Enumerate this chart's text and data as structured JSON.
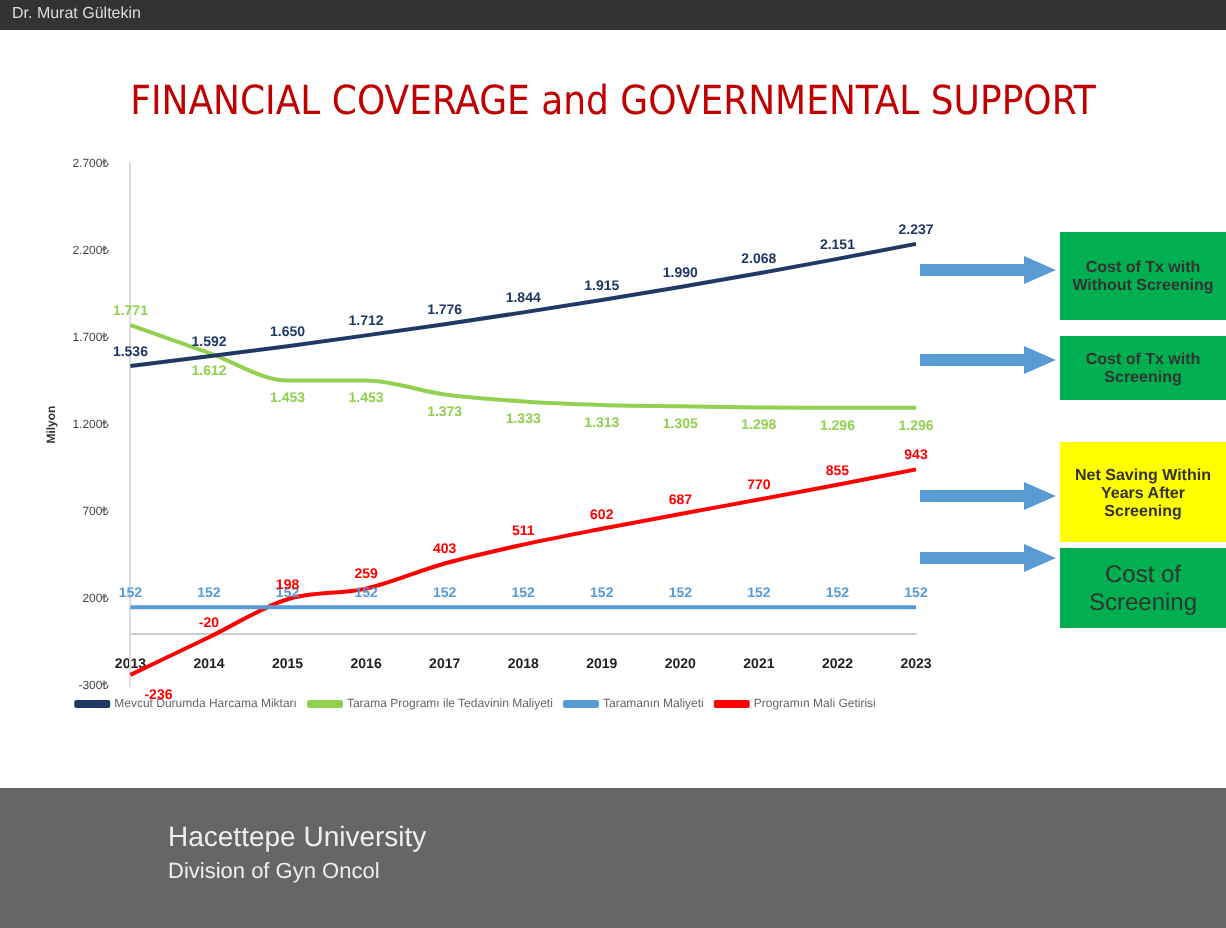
{
  "chart_data": {
    "type": "line",
    "title": "FINANCIAL COVERAGE and GOVERNMENTAL SUPPORT",
    "ylabel": "Milyon",
    "categories": [
      "2013",
      "2014",
      "2015",
      "2016",
      "2017",
      "2018",
      "2019",
      "2020",
      "2021",
      "2022",
      "2023"
    ],
    "ylim": [
      -300,
      2700
    ],
    "yticks": [
      {
        "value": -300,
        "label": "-300₺"
      },
      {
        "value": 200,
        "label": "200₺"
      },
      {
        "value": 700,
        "label": "700₺"
      },
      {
        "value": 1200,
        "label": "1.200₺"
      },
      {
        "value": 1700,
        "label": "1.700₺"
      },
      {
        "value": 2200,
        "label": "2.200₺"
      },
      {
        "value": 2700,
        "label": "2.700₺"
      }
    ],
    "series": [
      {
        "name": "Mevcut Durumda Harcama Miktarı",
        "color": "#1f3864",
        "values": [
          1536,
          1592,
          1650,
          1712,
          1776,
          1844,
          1915,
          1990,
          2068,
          2151,
          2237
        ],
        "value_labels": [
          "1.536",
          "1.592",
          "1.650",
          "1.712",
          "1.776",
          "1.844",
          "1.915",
          "1.990",
          "2.068",
          "2.151",
          "2.237"
        ]
      },
      {
        "name": "Tarama Programı ile Tedavinin Maliyeti",
        "color": "#92d050",
        "values": [
          1771,
          1612,
          1453,
          1453,
          1373,
          1333,
          1313,
          1305,
          1298,
          1296,
          1296
        ],
        "value_labels": [
          "1.771",
          "1.612",
          "1.453",
          "1.453",
          "1.373",
          "1.333",
          "1.313",
          "1.305",
          "1.298",
          "1.296",
          "1.296"
        ]
      },
      {
        "name": "Taramanın Maliyeti",
        "color": "#5b9bd5",
        "values": [
          152,
          152,
          152,
          152,
          152,
          152,
          152,
          152,
          152,
          152,
          152
        ],
        "value_labels": [
          "152",
          "152",
          "152",
          "152",
          "152",
          "152",
          "152",
          "152",
          "152",
          "152",
          "152"
        ]
      },
      {
        "name": "Programın Mali Getirisi",
        "color": "#ff0000",
        "values": [
          -236,
          -20,
          198,
          259,
          403,
          511,
          602,
          687,
          770,
          855,
          943
        ],
        "value_labels": [
          "-236",
          "-20",
          "198",
          "259",
          "403",
          "511",
          "602",
          "687",
          "770",
          "855",
          "943"
        ]
      }
    ],
    "grid": false,
    "legend": "bottom",
    "marker": "none",
    "line_style": "solid",
    "annotations": [
      "Dr. Murat Gültekin",
      "Cost of Tx with Without Screening",
      "Cost of Tx with Screening",
      "Net Saving Within Years After Screening",
      "Cost of Screening",
      "Hacettepe University",
      "Division of Gyn Oncol"
    ]
  }
}
